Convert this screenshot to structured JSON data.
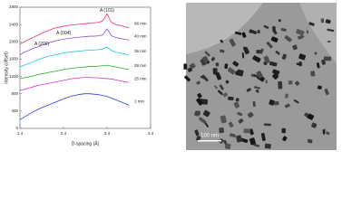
{
  "chart_data": {
    "type": "line",
    "y_label": "Intensity (offset)",
    "x_label": "D-spacing (Å)",
    "x": [
      1.4,
      1.5,
      1.6,
      1.7,
      1.8,
      1.9,
      2.0,
      2.1,
      2.2,
      2.3,
      2.4,
      2.5,
      2.6,
      2.7,
      2.8,
      2.9,
      3.0,
      3.1,
      3.2,
      3.3,
      3.4,
      3.5,
      3.6,
      3.7,
      3.8,
      3.9
    ],
    "series": [
      {
        "name": "1 min",
        "color": "#2a3fd6",
        "values": [
          200,
          260,
          320,
          380,
          430,
          480,
          520,
          560,
          600,
          640,
          680,
          720,
          750,
          770,
          790,
          800,
          800,
          790,
          780,
          760,
          740,
          700,
          660,
          620,
          580,
          540
        ]
      },
      {
        "name": "25 min",
        "color": "#e030d0",
        "values": [
          880,
          900,
          930,
          960,
          990,
          1010,
          1030,
          1050,
          1070,
          1090,
          1110,
          1130,
          1150,
          1160,
          1170,
          1180,
          1180,
          1170,
          1170,
          1160,
          1150,
          1140,
          1120,
          1100,
          1080,
          1060
        ]
      },
      {
        "name": "28 min",
        "color": "#22b022",
        "values": [
          1150,
          1170,
          1190,
          1210,
          1240,
          1260,
          1280,
          1300,
          1320,
          1340,
          1360,
          1380,
          1390,
          1400,
          1410,
          1420,
          1430,
          1430,
          1440,
          1450,
          1460,
          1440,
          1420,
          1400,
          1380,
          1360
        ]
      },
      {
        "name": "35 min",
        "color": "#20c8d8",
        "values": [
          1420,
          1460,
          1500,
          1540,
          1580,
          1620,
          1650,
          1680,
          1700,
          1720,
          1740,
          1760,
          1770,
          1780,
          1790,
          1800,
          1810,
          1810,
          1820,
          1830,
          1880,
          1800,
          1760,
          1740,
          1720,
          1700
        ]
      },
      {
        "name": "40 min",
        "color": "#8a4fd0",
        "values": [
          1700,
          1760,
          1800,
          1850,
          1880,
          1920,
          1950,
          1990,
          2020,
          2040,
          2060,
          2080,
          2090,
          2100,
          2110,
          2120,
          2130,
          2130,
          2140,
          2160,
          2300,
          2140,
          2100,
          2080,
          2060,
          2040
        ]
      },
      {
        "name": "96 min",
        "color": "#f03060",
        "values": [
          1950,
          2000,
          2050,
          2100,
          2150,
          2200,
          2240,
          2280,
          2320,
          2340,
          2360,
          2380,
          2390,
          2400,
          2410,
          2420,
          2430,
          2440,
          2450,
          2480,
          2650,
          2450,
          2400,
          2380,
          2350,
          2330
        ]
      }
    ],
    "annotations": [
      {
        "text": "A (200)",
        "x": 1.9,
        "y": 1950
      },
      {
        "text": "A (004)",
        "x": 2.4,
        "y": 2200
      },
      {
        "text": "A (101)",
        "x": 3.4,
        "y": 2720
      }
    ],
    "xlim": [
      1.4,
      4.4
    ],
    "xticks": [
      1.4,
      2.4,
      3.4,
      4.4
    ],
    "ylim": [
      0,
      2800
    ],
    "yticks": [
      0,
      400,
      800,
      1200,
      1600,
      2000,
      2400,
      2800
    ]
  },
  "micrograph": {
    "scale_label": "100 nm"
  }
}
